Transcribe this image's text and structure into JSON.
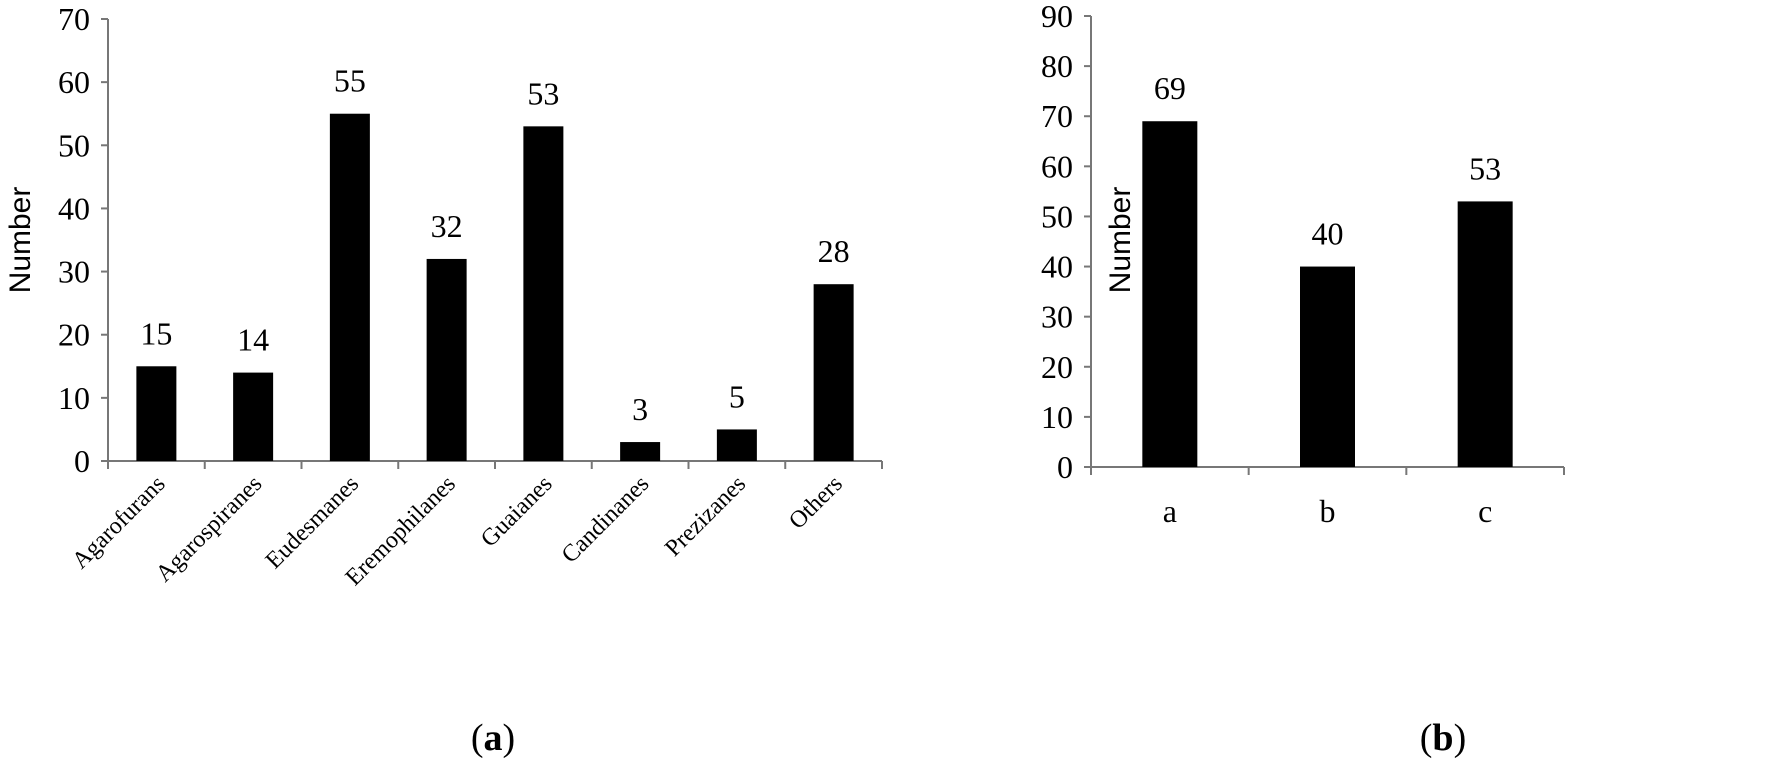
{
  "chart_data": [
    {
      "type": "bar",
      "panel": "a",
      "caption_open": "(",
      "caption_letter": "a",
      "caption_close": ")",
      "ylabel": "Number",
      "xlabel": "",
      "ylim": [
        0,
        70
      ],
      "yticks": [
        0,
        10,
        20,
        30,
        40,
        50,
        60,
        70
      ],
      "categories": [
        "Agarofurans",
        "Agarospiranes",
        "Eudesmanes",
        "Eremophilanes",
        "Guaianes",
        "Candinanes",
        "Prezizanes",
        "Others"
      ],
      "values": [
        15,
        14,
        55,
        32,
        53,
        3,
        5,
        28
      ],
      "data_labels": true,
      "grid": false,
      "bar_color": "#000000"
    },
    {
      "type": "bar",
      "panel": "b",
      "caption_open": "(",
      "caption_letter": "b",
      "caption_close": ")",
      "ylabel": "Number",
      "xlabel": "",
      "ylim": [
        0,
        90
      ],
      "yticks": [
        0,
        10,
        20,
        30,
        40,
        50,
        60,
        70,
        80,
        90
      ],
      "categories": [
        "a",
        "b",
        "c"
      ],
      "values": [
        69,
        40,
        53
      ],
      "data_labels": true,
      "grid": false,
      "bar_color": "#000000"
    }
  ]
}
